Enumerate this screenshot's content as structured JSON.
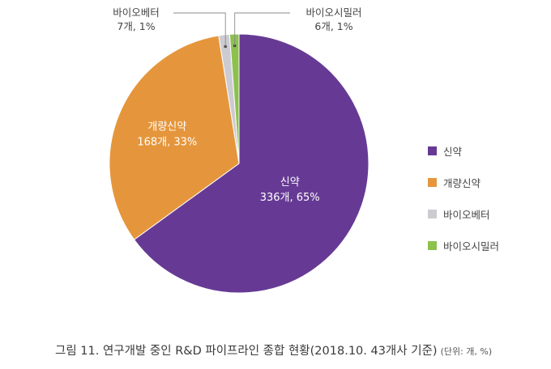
{
  "chart_data": {
    "type": "pie",
    "categories": [
      "신약",
      "개량신약",
      "바이오베터",
      "바이오시밀러"
    ],
    "counts": [
      336,
      168,
      7,
      6
    ],
    "values": [
      65,
      33,
      1,
      1
    ],
    "count_labels": [
      "336개, 65%",
      "168개, 33%",
      "7개, 1%",
      "6개, 1%"
    ],
    "colors": [
      "#663a94",
      "#e5963c",
      "#cdcbd2",
      "#8cc14e"
    ],
    "legend": [
      "신약",
      "개량신약",
      "바이오베터",
      "바이오시밀러"
    ],
    "legend_position": "right"
  },
  "caption": {
    "title": "그림 11. 연구개발 중인 R&D 파이프라인 종합 현황(2018.10. 43개사 기준)",
    "unit": "(단위: 개, %)"
  }
}
